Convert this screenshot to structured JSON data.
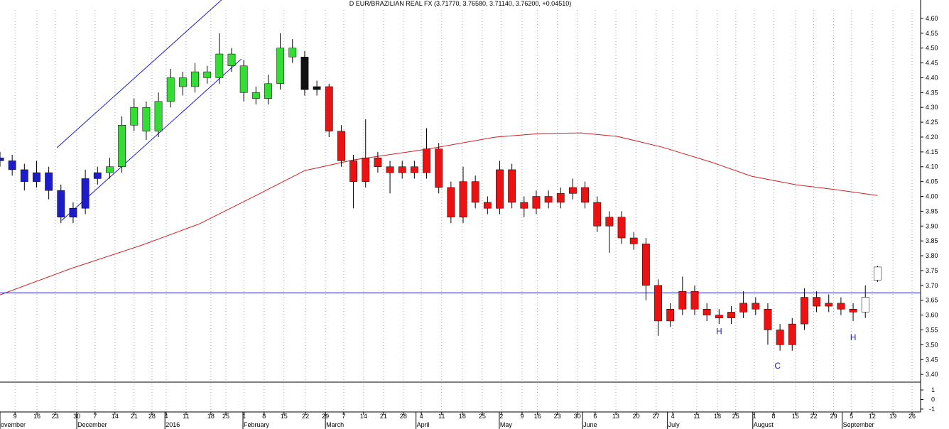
{
  "chart_data": {
    "type": "candlestick",
    "title": "D EUR/BRAZILIAN REAL FX (3.71770, 3.76580, 3.71140, 3.76200, +0.04510)",
    "xlim": [
      0,
      226.6
    ],
    "ylim": [
      3.374,
      4.662
    ],
    "yticks": [
      {
        "value": 4.6,
        "label": "4.60"
      },
      {
        "value": 4.55,
        "label": "4.55"
      },
      {
        "value": 4.5,
        "label": "4.50"
      },
      {
        "value": 4.45,
        "label": "4.45"
      },
      {
        "value": 4.4,
        "label": "4.40"
      },
      {
        "value": 4.35,
        "label": "4.35"
      },
      {
        "value": 4.3,
        "label": "4.30"
      },
      {
        "value": 4.25,
        "label": "4.25"
      },
      {
        "value": 4.2,
        "label": "4.20"
      },
      {
        "value": 4.15,
        "label": "4.15"
      },
      {
        "value": 4.1,
        "label": "4.10"
      },
      {
        "value": 4.05,
        "label": "4.05"
      },
      {
        "value": 4.0,
        "label": "4.00"
      },
      {
        "value": 3.95,
        "label": "3.95"
      },
      {
        "value": 3.9,
        "label": "3.90"
      },
      {
        "value": 3.85,
        "label": "3.85"
      },
      {
        "value": 3.8,
        "label": "3.80"
      },
      {
        "value": 3.75,
        "label": "3.75"
      },
      {
        "value": 3.7,
        "label": "3.70"
      },
      {
        "value": 3.65,
        "label": "3.65"
      },
      {
        "value": 3.6,
        "label": "3.60"
      },
      {
        "value": 3.55,
        "label": "3.55"
      },
      {
        "value": 3.5,
        "label": "3.50"
      },
      {
        "value": 3.45,
        "label": "3.45"
      },
      {
        "value": 3.4,
        "label": "3.40"
      }
    ],
    "xticks": [
      {
        "value": 3.7,
        "label": "9"
      },
      {
        "value": 9.1,
        "label": "16"
      },
      {
        "value": 13.6,
        "label": "23"
      },
      {
        "value": 18.9,
        "label": "30"
      },
      {
        "value": 23.4,
        "label": "7"
      },
      {
        "value": 28.3,
        "label": "14"
      },
      {
        "value": 33,
        "label": "21"
      },
      {
        "value": 37.4,
        "label": "28"
      },
      {
        "value": 40.9,
        "label": "4"
      },
      {
        "value": 45.8,
        "label": "11"
      },
      {
        "value": 51.9,
        "label": "18"
      },
      {
        "value": 55.6,
        "label": "25"
      },
      {
        "value": 60.1,
        "label": "1"
      },
      {
        "value": 65,
        "label": "8"
      },
      {
        "value": 69.9,
        "label": "15"
      },
      {
        "value": 75.2,
        "label": "22"
      },
      {
        "value": 80.1,
        "label": "29"
      },
      {
        "value": 84.6,
        "label": "7"
      },
      {
        "value": 89.5,
        "label": "14"
      },
      {
        "value": 94.4,
        "label": "21"
      },
      {
        "value": 99.3,
        "label": "28"
      },
      {
        "value": 103.7,
        "label": "4"
      },
      {
        "value": 108.7,
        "label": "11"
      },
      {
        "value": 113.8,
        "label": "18"
      },
      {
        "value": 118.7,
        "label": "25"
      },
      {
        "value": 123.4,
        "label": "2"
      },
      {
        "value": 128.5,
        "label": "9"
      },
      {
        "value": 132.3,
        "label": "16"
      },
      {
        "value": 137.2,
        "label": "23"
      },
      {
        "value": 142.1,
        "label": "30"
      },
      {
        "value": 146.5,
        "label": "6"
      },
      {
        "value": 151.6,
        "label": "13"
      },
      {
        "value": 156.6,
        "label": "20"
      },
      {
        "value": 161.5,
        "label": "27"
      },
      {
        "value": 165.6,
        "label": "4"
      },
      {
        "value": 171.5,
        "label": "11"
      },
      {
        "value": 176.6,
        "label": "18"
      },
      {
        "value": 181.1,
        "label": "25"
      },
      {
        "value": 185.7,
        "label": "1"
      },
      {
        "value": 190.4,
        "label": "8"
      },
      {
        "value": 195.8,
        "label": "15"
      },
      {
        "value": 200.3,
        "label": "22"
      },
      {
        "value": 205.2,
        "label": "29"
      },
      {
        "value": 209.6,
        "label": "5"
      },
      {
        "value": 214.7,
        "label": "12"
      },
      {
        "value": 219.8,
        "label": "19"
      },
      {
        "value": 224.5,
        "label": "26"
      }
    ],
    "month_labels": [
      {
        "value": 0,
        "label": "ovember"
      },
      {
        "value": 18.9,
        "label": "December"
      },
      {
        "value": 40.6,
        "label": "2016"
      },
      {
        "value": 59.8,
        "label": "February"
      },
      {
        "value": 80.1,
        "label": "March"
      },
      {
        "value": 102.4,
        "label": "April"
      },
      {
        "value": 122.9,
        "label": "May"
      },
      {
        "value": 143.4,
        "label": "June"
      },
      {
        "value": 164.3,
        "label": "July"
      },
      {
        "value": 185.3,
        "label": "August"
      },
      {
        "value": 207.3,
        "label": "September"
      }
    ],
    "grid": true,
    "series": [
      {
        "color": "#1c1ccc",
        "candles": [
          [
            0,
            4.13,
            4.15,
            4.1,
            4.12
          ],
          [
            3,
            4.12,
            4.14,
            4.07,
            4.09
          ],
          [
            6,
            4.09,
            4.11,
            4.02,
            4.05
          ],
          [
            9,
            4.05,
            4.12,
            4.03,
            4.08
          ],
          [
            12,
            4.08,
            4.1,
            3.99,
            4.02
          ],
          [
            15,
            4.02,
            4.04,
            3.91,
            3.93
          ],
          [
            18,
            3.93,
            3.98,
            3.91,
            3.96
          ],
          [
            21,
            3.96,
            4.09,
            3.94,
            4.06
          ],
          [
            24,
            4.06,
            4.1,
            4.04,
            4.08
          ]
        ]
      },
      {
        "color": "#33dd33",
        "candles": [
          [
            27,
            4.08,
            4.13,
            4.06,
            4.1
          ],
          [
            30,
            4.1,
            4.27,
            4.08,
            4.24
          ],
          [
            33,
            4.24,
            4.33,
            4.22,
            4.3
          ],
          [
            36,
            4.3,
            4.32,
            4.19,
            4.22
          ],
          [
            39,
            4.22,
            4.35,
            4.2,
            4.32
          ],
          [
            42,
            4.32,
            4.43,
            4.3,
            4.4
          ],
          [
            45,
            4.4,
            4.42,
            4.34,
            4.37
          ],
          [
            48,
            4.37,
            4.45,
            4.35,
            4.42
          ],
          [
            51,
            4.42,
            4.44,
            4.38,
            4.4
          ],
          [
            54,
            4.4,
            4.55,
            4.38,
            4.48
          ],
          [
            57,
            4.48,
            4.5,
            4.42,
            4.44
          ],
          [
            60,
            4.44,
            4.46,
            4.32,
            4.35
          ],
          [
            63,
            4.35,
            4.37,
            4.31,
            4.33
          ],
          [
            66,
            4.33,
            4.41,
            4.31,
            4.38
          ],
          [
            69,
            4.38,
            4.55,
            4.36,
            4.5
          ],
          [
            72,
            4.5,
            4.53,
            4.45,
            4.47
          ]
        ]
      },
      {
        "color": "#111111",
        "candles": [
          [
            75,
            4.47,
            4.49,
            4.34,
            4.36
          ],
          [
            78,
            4.36,
            4.39,
            4.34,
            4.37
          ]
        ]
      },
      {
        "color": "#ee1111",
        "candles": [
          [
            81,
            4.37,
            4.38,
            4.2,
            4.22
          ],
          [
            84,
            4.22,
            4.24,
            4.1,
            4.12
          ],
          [
            87,
            4.12,
            4.14,
            3.96,
            4.05
          ],
          [
            90,
            4.05,
            4.26,
            4.03,
            4.13
          ],
          [
            93,
            4.13,
            4.15,
            4.08,
            4.1
          ],
          [
            96,
            4.1,
            4.12,
            4.01,
            4.08
          ],
          [
            99,
            4.08,
            4.12,
            4.06,
            4.1
          ],
          [
            102,
            4.1,
            4.12,
            4.06,
            4.08
          ],
          [
            105,
            4.08,
            4.23,
            4.06,
            4.16
          ],
          [
            108,
            4.16,
            4.18,
            4.01,
            4.03
          ],
          [
            111,
            4.03,
            4.05,
            3.91,
            3.93
          ],
          [
            114,
            3.93,
            4.1,
            3.91,
            4.05
          ],
          [
            117,
            4.05,
            4.07,
            3.96,
            3.98
          ],
          [
            120,
            3.98,
            4.0,
            3.94,
            3.96
          ],
          [
            123,
            3.96,
            4.12,
            3.94,
            4.09
          ],
          [
            126,
            4.09,
            4.11,
            3.96,
            3.98
          ],
          [
            129,
            3.98,
            4.0,
            3.93,
            3.96
          ],
          [
            132,
            3.96,
            4.02,
            3.94,
            4.0
          ],
          [
            135,
            4.0,
            4.02,
            3.96,
            3.98
          ],
          [
            138,
            3.98,
            4.03,
            3.96,
            4.01
          ],
          [
            141,
            4.01,
            4.06,
            3.99,
            4.03
          ],
          [
            144,
            4.03,
            4.05,
            3.96,
            3.98
          ],
          [
            147,
            3.98,
            4.0,
            3.88,
            3.9
          ],
          [
            150,
            3.9,
            3.95,
            3.81,
            3.93
          ],
          [
            153,
            3.93,
            3.95,
            3.84,
            3.86
          ],
          [
            156,
            3.86,
            3.88,
            3.82,
            3.84
          ],
          [
            159,
            3.84,
            3.86,
            3.65,
            3.7
          ],
          [
            162,
            3.7,
            3.72,
            3.53,
            3.58
          ],
          [
            165,
            3.58,
            3.64,
            3.56,
            3.62
          ],
          [
            168,
            3.62,
            3.73,
            3.6,
            3.68
          ],
          [
            171,
            3.68,
            3.7,
            3.6,
            3.62
          ],
          [
            174,
            3.62,
            3.64,
            3.58,
            3.6
          ],
          [
            177,
            3.6,
            3.62,
            3.57,
            3.59
          ],
          [
            180,
            3.59,
            3.63,
            3.57,
            3.61
          ],
          [
            183,
            3.61,
            3.68,
            3.59,
            3.64
          ],
          [
            186,
            3.64,
            3.66,
            3.6,
            3.62
          ],
          [
            189,
            3.62,
            3.64,
            3.5,
            3.55
          ],
          [
            192,
            3.55,
            3.57,
            3.48,
            3.5
          ],
          [
            195,
            3.5,
            3.59,
            3.48,
            3.57
          ],
          [
            198,
            3.57,
            3.69,
            3.55,
            3.66
          ],
          [
            201,
            3.66,
            3.68,
            3.61,
            3.63
          ],
          [
            204,
            3.63,
            3.67,
            3.61,
            3.64
          ],
          [
            207,
            3.64,
            3.66,
            3.6,
            3.62
          ],
          [
            210,
            3.62,
            3.64,
            3.58,
            3.61
          ]
        ]
      },
      {
        "color": "#ffffff",
        "candles": [
          [
            213,
            3.61,
            3.7,
            3.59,
            3.66
          ],
          [
            216,
            3.7177,
            3.7658,
            3.7114,
            3.762
          ]
        ]
      }
    ],
    "lines": [
      {
        "color": "#cc2222",
        "x": [
          0,
          17.5,
          35,
          49,
          63,
          75,
          87,
          105,
          122,
          133,
          143,
          152,
          163,
          175,
          185,
          196,
          206,
          216
        ],
        "values": [
          3.668,
          3.757,
          3.836,
          3.907,
          4.003,
          4.087,
          4.123,
          4.159,
          4.2,
          4.212,
          4.214,
          4.202,
          4.166,
          4.116,
          4.068,
          4.039,
          4.022,
          4.003
        ]
      },
      {
        "color": "#1c1ccc",
        "x": [
          14,
          54.5
        ],
        "values": [
          4.164,
          4.662
        ]
      },
      {
        "color": "#1c1ccc",
        "x": [
          15.2,
          59.4
        ],
        "values": [
          3.919,
          4.463
        ]
      },
      {
        "color": "#1c1ccc",
        "x": [
          0,
          226.6
        ],
        "values": [
          3.675,
          3.675
        ]
      }
    ],
    "annotations": [
      {
        "text": "H",
        "x": 177,
        "y": 3.536
      },
      {
        "text": "C",
        "x": 191.4,
        "y": 3.419
      },
      {
        "text": "H",
        "x": 210,
        "y": 3.515
      }
    ],
    "lower_pane": {
      "ylim": [
        -1.3,
        1.67
      ],
      "yticks": [
        1,
        0,
        -1
      ]
    }
  }
}
